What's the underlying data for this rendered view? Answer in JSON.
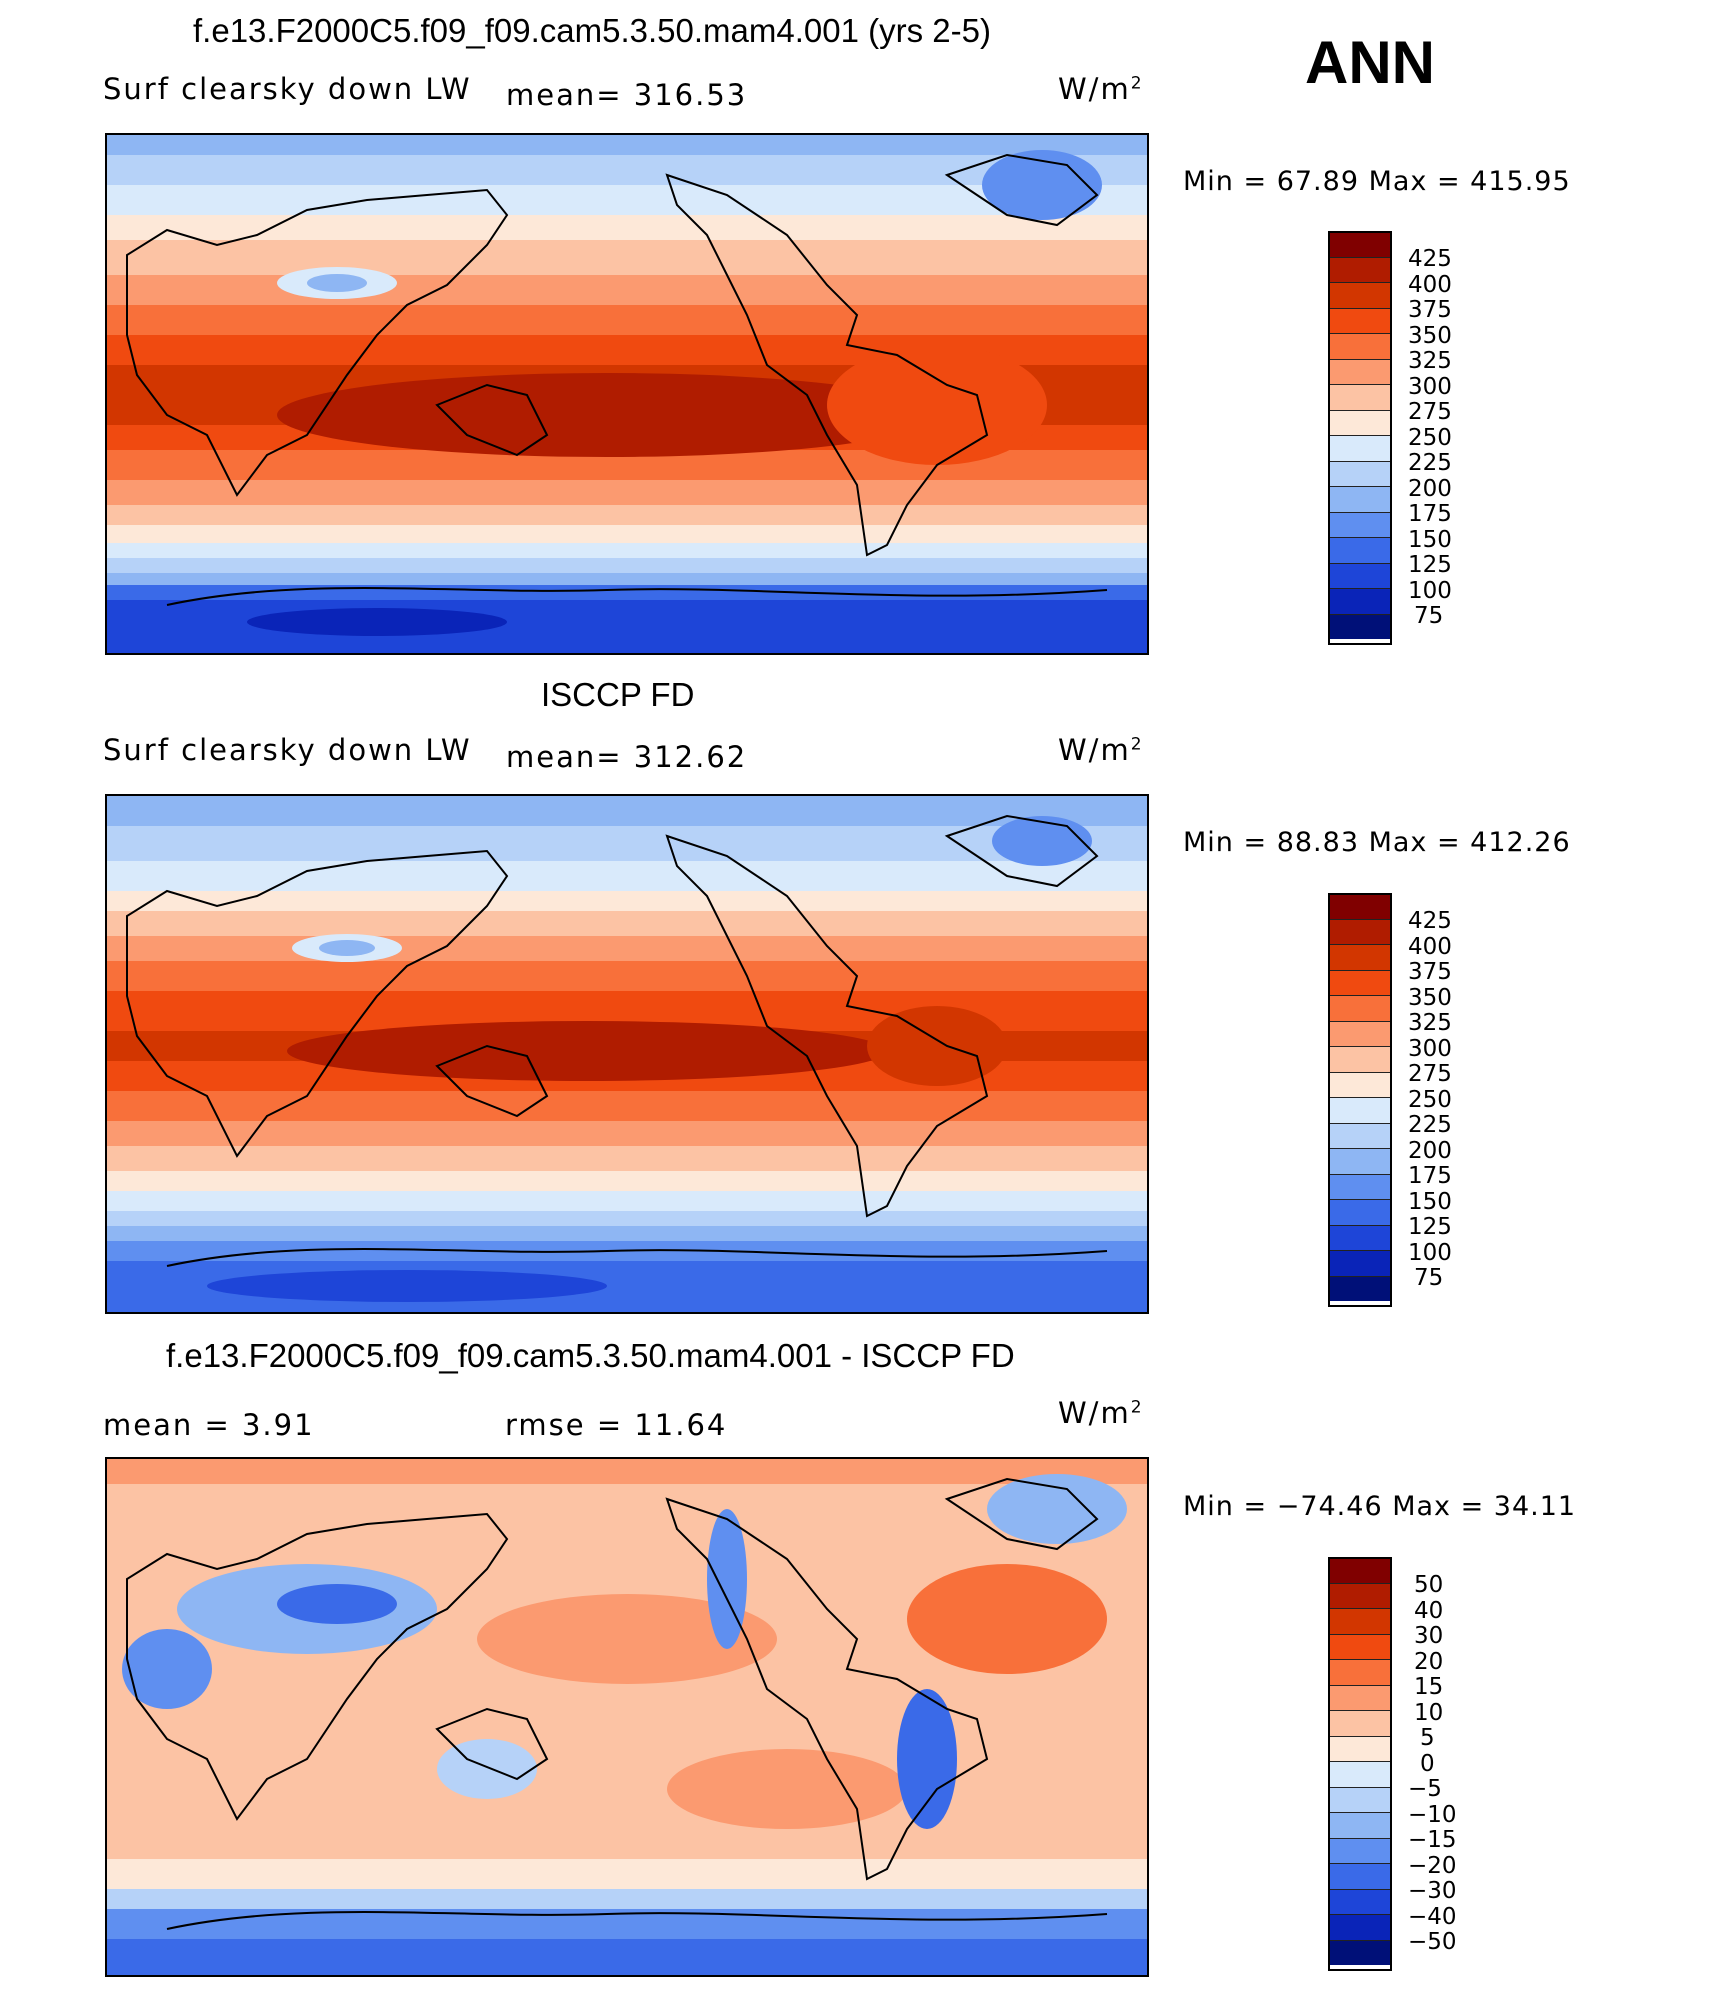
{
  "season": "ANN",
  "panels": [
    {
      "title": "f.e13.F2000C5.f09_f09.cam5.3.50.mam4.001 (yrs 2-5)",
      "left_label": "Surf clearsky down LW",
      "center_label": "mean=  316.53",
      "units": "W/m",
      "units_sup": "2",
      "minmax": "Min =   67.89  Max  =  415.95",
      "levels": [
        "425",
        "400",
        "375",
        "350",
        "325",
        "300",
        "275",
        "250",
        "225",
        "200",
        "175",
        "150",
        "125",
        "100",
        "75"
      ],
      "colors": [
        "#800000",
        "#b01c00",
        "#d23600",
        "#f04a10",
        "#f8703a",
        "#fb9a70",
        "#fcc3a4",
        "#fde8d8",
        "#d9eafb",
        "#b6d2f8",
        "#8eb6f3",
        "#5f8ff0",
        "#3a6ae8",
        "#1e45d8",
        "#0a24b8",
        "#001078"
      ],
      "color_values": [
        430,
        412,
        387,
        362,
        337,
        312,
        287,
        262,
        237,
        212,
        187,
        162,
        137,
        112,
        87,
        70
      ]
    },
    {
      "title": "ISCCP FD",
      "left_label": "Surf clearsky down LW",
      "center_label": "mean=  312.62",
      "units": "W/m",
      "units_sup": "2",
      "minmax": "Min =   88.83  Max  =  412.26",
      "levels": [
        "425",
        "400",
        "375",
        "350",
        "325",
        "300",
        "275",
        "250",
        "225",
        "200",
        "175",
        "150",
        "125",
        "100",
        "75"
      ],
      "colors": [
        "#800000",
        "#b01c00",
        "#d23600",
        "#f04a10",
        "#f8703a",
        "#fb9a70",
        "#fcc3a4",
        "#fde8d8",
        "#d9eafb",
        "#b6d2f8",
        "#8eb6f3",
        "#5f8ff0",
        "#3a6ae8",
        "#1e45d8",
        "#0a24b8",
        "#001078"
      ]
    },
    {
      "title": "f.e13.F2000C5.f09_f09.cam5.3.50.mam4.001 - ISCCP FD",
      "left_label": "mean =    3.91",
      "center_label": "rmse =    11.64",
      "units": "W/m",
      "units_sup": "2",
      "minmax": "Min = −74.46  Max =   34.11",
      "levels": [
        "50",
        "40",
        "30",
        "20",
        "15",
        "10",
        "5",
        "0",
        "−5",
        "−10",
        "−15",
        "−20",
        "−30",
        "−40",
        "−50"
      ],
      "colors": [
        "#800000",
        "#b01c00",
        "#d23600",
        "#f04a10",
        "#f8703a",
        "#fb9a70",
        "#fcc3a4",
        "#fde8d8",
        "#d9eafb",
        "#b6d2f8",
        "#8eb6f3",
        "#5f8ff0",
        "#3a6ae8",
        "#1e45d8",
        "#0a24b8",
        "#001078"
      ]
    }
  ]
}
